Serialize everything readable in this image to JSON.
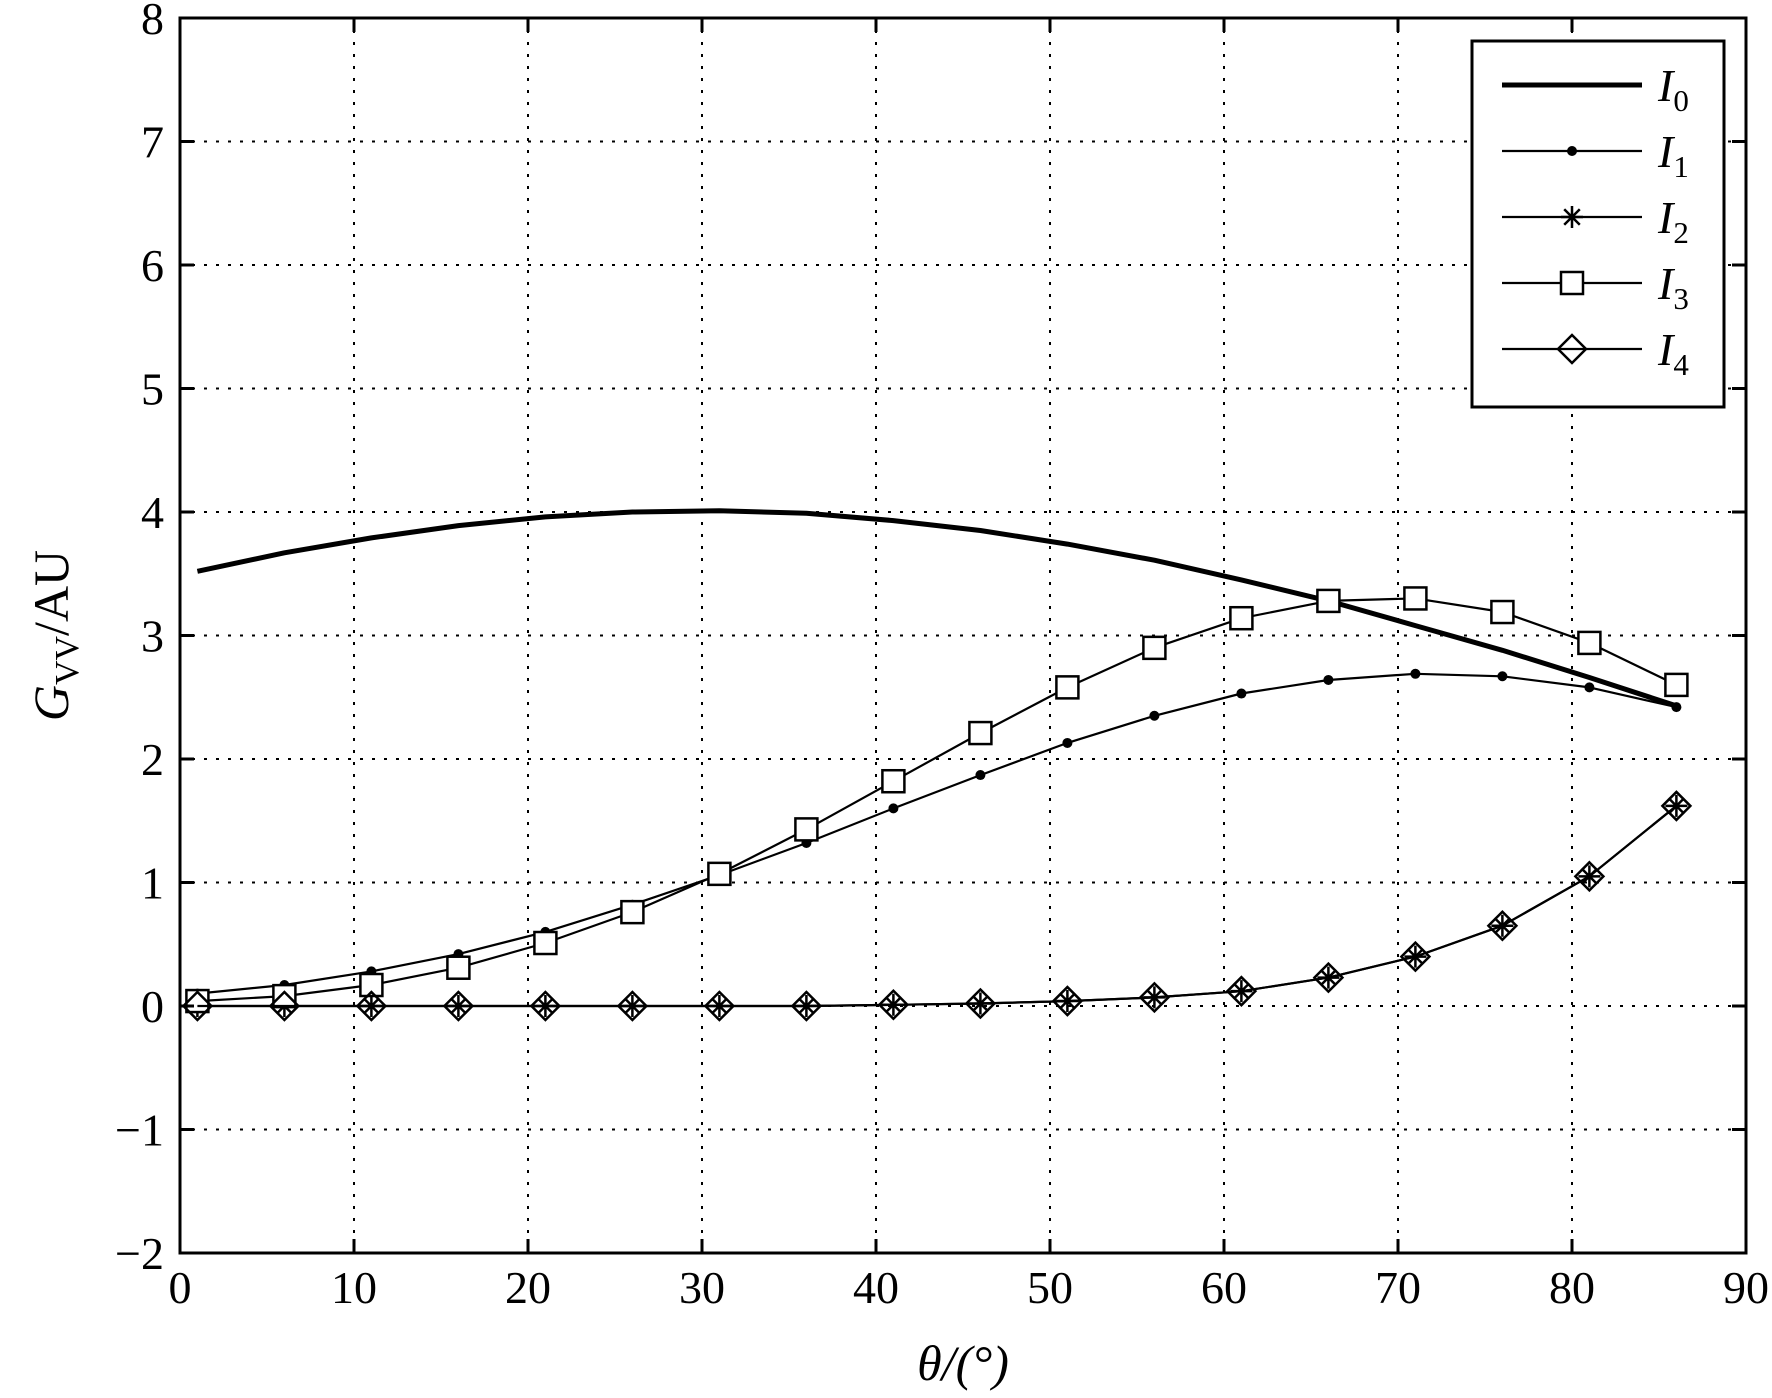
{
  "chart_data": {
    "type": "line",
    "title": "",
    "xlabel": "θ/(°)",
    "ylabel": {
      "main": "G",
      "sub": "VV",
      "suffix": "/AU"
    },
    "xlim": [
      0,
      90
    ],
    "ylim": [
      -2,
      8
    ],
    "xticks": [
      0,
      10,
      20,
      30,
      40,
      50,
      60,
      70,
      80,
      90
    ],
    "yticks": [
      -2,
      -1,
      0,
      1,
      2,
      3,
      4,
      5,
      6,
      7,
      8
    ],
    "ytick_labels": [
      "−2",
      "−1",
      "0",
      "1",
      "2",
      "3",
      "4",
      "5",
      "6",
      "7",
      "8"
    ],
    "grid": true,
    "legend_position": "top-right",
    "colors": {
      "line": "#000000",
      "background": "#ffffff"
    },
    "series": [
      {
        "name": "I0",
        "label_main": "I",
        "label_sub": "0",
        "marker": "none",
        "style": "thick",
        "x": [
          1,
          6,
          11,
          16,
          21,
          26,
          31,
          36,
          41,
          46,
          51,
          56,
          61,
          66,
          71,
          76,
          81,
          86
        ],
        "y": [
          3.52,
          3.67,
          3.79,
          3.89,
          3.96,
          4.0,
          4.01,
          3.99,
          3.93,
          3.85,
          3.74,
          3.61,
          3.45,
          3.28,
          3.08,
          2.88,
          2.66,
          2.43
        ]
      },
      {
        "name": "I1",
        "label_main": "I",
        "label_sub": "1",
        "marker": "dot",
        "style": "thin",
        "x": [
          1,
          6,
          11,
          16,
          21,
          26,
          31,
          36,
          41,
          46,
          51,
          56,
          61,
          66,
          71,
          76,
          81,
          86
        ],
        "y": [
          0.1,
          0.17,
          0.28,
          0.42,
          0.6,
          0.82,
          1.06,
          1.32,
          1.6,
          1.87,
          2.13,
          2.35,
          2.53,
          2.64,
          2.69,
          2.67,
          2.58,
          2.42
        ]
      },
      {
        "name": "I2",
        "label_main": "I",
        "label_sub": "2",
        "marker": "star",
        "style": "thin",
        "x": [
          1,
          6,
          11,
          16,
          21,
          26,
          31,
          36,
          41,
          46,
          51,
          56,
          61,
          66,
          71,
          76,
          81,
          86
        ],
        "y": [
          0.0,
          0.0,
          0.0,
          0.0,
          0.0,
          0.0,
          0.0,
          0.0,
          0.01,
          0.02,
          0.04,
          0.07,
          0.12,
          0.23,
          0.4,
          0.65,
          1.05,
          1.62
        ]
      },
      {
        "name": "I3",
        "label_main": "I",
        "label_sub": "3",
        "marker": "square",
        "style": "thin",
        "x": [
          1,
          6,
          11,
          16,
          21,
          26,
          31,
          36,
          41,
          46,
          51,
          56,
          61,
          66,
          71,
          76,
          81,
          86
        ],
        "y": [
          0.04,
          0.08,
          0.17,
          0.31,
          0.51,
          0.76,
          1.07,
          1.43,
          1.82,
          2.21,
          2.58,
          2.9,
          3.14,
          3.28,
          3.3,
          3.19,
          2.94,
          2.6
        ]
      },
      {
        "name": "I4",
        "label_main": "I",
        "label_sub": "4",
        "marker": "diamond",
        "style": "thin",
        "x": [
          1,
          6,
          11,
          16,
          21,
          26,
          31,
          36,
          41,
          46,
          51,
          56,
          61,
          66,
          71,
          76,
          81,
          86
        ],
        "y": [
          0.0,
          0.0,
          0.0,
          0.0,
          0.0,
          0.0,
          0.0,
          0.0,
          0.01,
          0.02,
          0.04,
          0.07,
          0.12,
          0.23,
          0.4,
          0.65,
          1.05,
          1.62
        ]
      }
    ]
  }
}
